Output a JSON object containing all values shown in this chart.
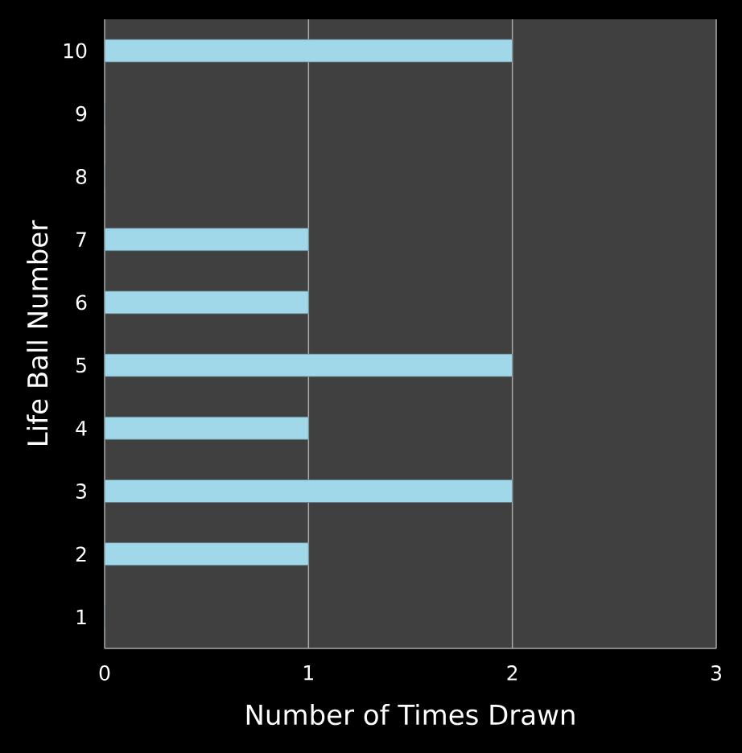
{
  "chart_data": {
    "type": "bar",
    "orientation": "horizontal",
    "xlabel": "Number of Times Drawn",
    "ylabel": "Life Ball Number",
    "categories": [
      "10",
      "9",
      "8",
      "7",
      "6",
      "5",
      "4",
      "3",
      "2",
      "1"
    ],
    "values": [
      2,
      0,
      0,
      1,
      1,
      2,
      1,
      2,
      1,
      0
    ],
    "color": "#a0d8ea",
    "xlim": [
      0,
      3
    ],
    "xticks": [
      0,
      1,
      2,
      3
    ],
    "grid": "x"
  }
}
